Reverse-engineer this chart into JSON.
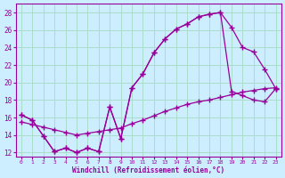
{
  "background_color": "#cceeff",
  "grid_color": "#aaddcc",
  "line_color": "#990099",
  "xlabel": "Windchill (Refroidissement éolien,°C)",
  "xlim": [
    -0.5,
    23.5
  ],
  "ylim": [
    11.5,
    29.0
  ],
  "xticks": [
    0,
    1,
    2,
    3,
    4,
    5,
    6,
    7,
    8,
    9,
    10,
    11,
    12,
    13,
    14,
    15,
    16,
    17,
    18,
    19,
    20,
    21,
    22,
    23
  ],
  "yticks": [
    12,
    14,
    16,
    18,
    20,
    22,
    24,
    26,
    28
  ],
  "line1_x": [
    0,
    1,
    2,
    3,
    4,
    5,
    6,
    7,
    8,
    9,
    10,
    11,
    12,
    13,
    14,
    15,
    16,
    17,
    18,
    19,
    20,
    21,
    22,
    23
  ],
  "line1_y": [
    16.3,
    15.7,
    13.9,
    12.1,
    12.5,
    12.0,
    12.5,
    12.1,
    17.2,
    13.6,
    19.4,
    21.0,
    23.4,
    25.0,
    26.1,
    26.7,
    27.5,
    27.8,
    28.0,
    26.3,
    24.0,
    23.5,
    21.5,
    19.3
  ],
  "line2_x": [
    0,
    1,
    2,
    3,
    4,
    5,
    6,
    7,
    8,
    9,
    10,
    11,
    12,
    13,
    14,
    15,
    16,
    17,
    18,
    19,
    20,
    21,
    22,
    23
  ],
  "line2_y": [
    16.3,
    15.7,
    13.9,
    12.1,
    12.5,
    12.0,
    12.5,
    12.1,
    17.2,
    13.6,
    19.4,
    21.0,
    23.4,
    25.0,
    26.1,
    26.7,
    27.5,
    27.8,
    28.0,
    19.0,
    18.5,
    18.0,
    17.8,
    19.3
  ],
  "line3_x": [
    0,
    1,
    2,
    3,
    4,
    5,
    6,
    7,
    8,
    9,
    10,
    11,
    12,
    13,
    14,
    15,
    16,
    17,
    18,
    19,
    20,
    21,
    22,
    23
  ],
  "line3_y": [
    15.5,
    15.2,
    14.9,
    14.6,
    14.3,
    14.0,
    14.2,
    14.4,
    14.6,
    14.8,
    15.3,
    15.7,
    16.2,
    16.7,
    17.1,
    17.5,
    17.8,
    18.0,
    18.3,
    18.6,
    18.9,
    19.1,
    19.3,
    19.4
  ]
}
